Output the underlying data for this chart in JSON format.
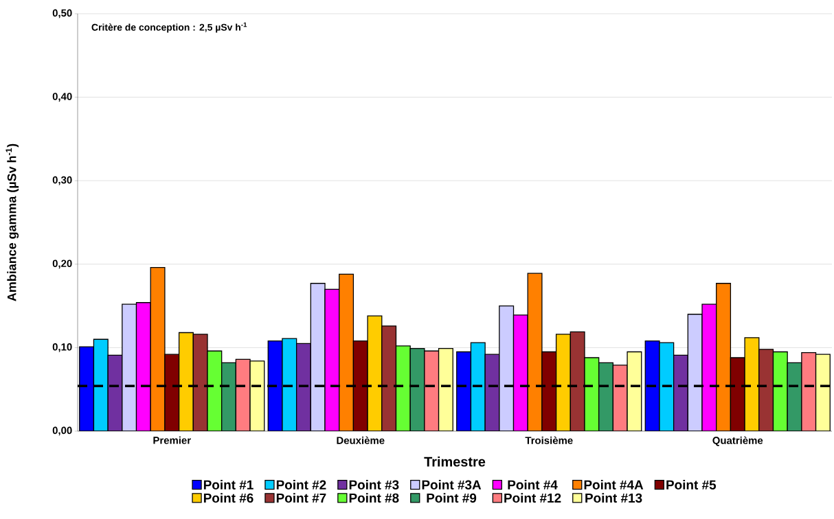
{
  "chart_data": {
    "type": "bar",
    "xlabel": "Trimestre",
    "ylabel": "Ambiance gamma (µSv h$^{-1}$)",
    "categories": [
      "Premier",
      "Deuxième",
      "Troisième",
      "Quatrième"
    ],
    "series": [
      {
        "name": "Point #1",
        "color": "#0000ff",
        "values": [
          0.101,
          0.108,
          0.095,
          0.108
        ]
      },
      {
        "name": "Point #2",
        "color": "#00ccff",
        "values": [
          0.11,
          0.111,
          0.106,
          0.106
        ]
      },
      {
        "name": "Point #3",
        "color": "#7030a0",
        "values": [
          0.091,
          0.105,
          0.092,
          0.091
        ]
      },
      {
        "name": "Point #3A",
        "color": "#ccccff",
        "values": [
          0.152,
          0.177,
          0.15,
          0.14
        ]
      },
      {
        "name": "Point #4",
        "color": "#ff00ff",
        "values": [
          0.154,
          0.17,
          0.139,
          0.152
        ]
      },
      {
        "name": "Point #4A",
        "color": "#ff8000",
        "values": [
          0.196,
          0.188,
          0.189,
          0.177
        ]
      },
      {
        "name": "Point #5",
        "color": "#800000",
        "values": [
          0.092,
          0.108,
          0.095,
          0.088
        ]
      },
      {
        "name": "Point #6",
        "color": "#ffcc00",
        "values": [
          0.118,
          0.138,
          0.116,
          0.112
        ]
      },
      {
        "name": "Point #7",
        "color": "#993333",
        "values": [
          0.116,
          0.126,
          0.119,
          0.098
        ]
      },
      {
        "name": "Point #8",
        "color": "#66ff33",
        "values": [
          0.096,
          0.102,
          0.088,
          0.095
        ]
      },
      {
        "name": "Point #9",
        "color": "#339966",
        "values": [
          0.082,
          0.099,
          0.082,
          0.082
        ]
      },
      {
        "name": "Point #12",
        "color": "#ff7c80",
        "values": [
          0.086,
          0.096,
          0.079,
          0.094
        ]
      },
      {
        "name": "Point #13",
        "color": "#ffff99",
        "values": [
          0.084,
          0.099,
          0.095,
          0.092
        ]
      }
    ],
    "ylim": [
      0,
      0.5
    ],
    "yticks": [
      {
        "value": 0,
        "label": "0,00"
      },
      {
        "value": 0.1,
        "label": "0,10"
      },
      {
        "value": 0.2,
        "label": "0,20"
      },
      {
        "value": 0.3,
        "label": "0,30"
      },
      {
        "value": 0.4,
        "label": "0,40"
      },
      {
        "value": 0.5,
        "label": "0,50"
      }
    ],
    "ref_lines": [
      {
        "axis": "y",
        "value": 0.054,
        "color": "#000000",
        "line_style": "dashed"
      }
    ],
    "annotations": [
      "Critère de conception : 2,5 µSv h$^{-1}$"
    ],
    "grid": "y",
    "legend": "bottom"
  }
}
